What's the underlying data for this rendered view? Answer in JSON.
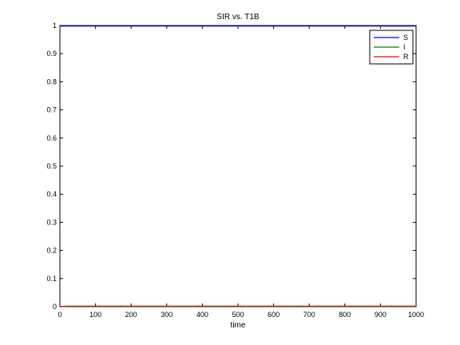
{
  "chart_data": {
    "type": "line",
    "title": "SIR vs. T1B",
    "xlabel": "time",
    "ylabel": "",
    "xlim": [
      0,
      1000
    ],
    "ylim": [
      0,
      1
    ],
    "xticks": [
      0,
      100,
      200,
      300,
      400,
      500,
      600,
      700,
      800,
      900,
      1000
    ],
    "yticks": [
      0,
      0.1,
      0.2,
      0.3,
      0.4,
      0.5,
      0.6,
      0.7,
      0.8,
      0.9,
      1
    ],
    "grid": false,
    "legend_position": "top-right",
    "series": [
      {
        "name": "S",
        "color": "#0000ff",
        "x": [
          0,
          1000
        ],
        "y": [
          0.998,
          0.998
        ]
      },
      {
        "name": "I",
        "color": "#008000",
        "x": [
          0,
          1000
        ],
        "y": [
          0,
          0
        ]
      },
      {
        "name": "R",
        "color": "#ff0000",
        "x": [
          0,
          20,
          1000
        ],
        "y": [
          0,
          0.002,
          0.002
        ]
      }
    ]
  }
}
